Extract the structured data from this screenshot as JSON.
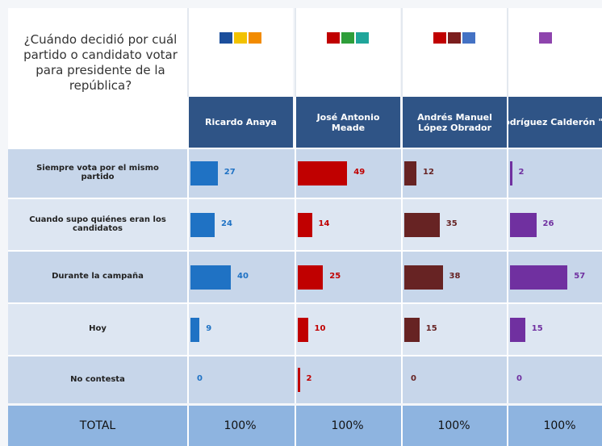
{
  "chart_data": {
    "type": "bar",
    "title": "¿Cuándo decidió por cuál partido o candidato votar para presidente de la república?",
    "categories": [
      "Siempre vota por el mismo partido",
      "Cuando supo quiénes eran los candidatos",
      "Durante la campaña",
      "Hoy",
      "No contesta"
    ],
    "series": [
      {
        "name": "Ricardo Anaya",
        "color": "#1f72c4",
        "values": [
          27,
          24,
          40,
          9,
          0
        ],
        "total_label": "100%"
      },
      {
        "name": "José Antonio Meade",
        "color": "#c00000",
        "values": [
          49,
          14,
          25,
          10,
          2
        ],
        "total_label": "100%"
      },
      {
        "name": "Andrés Manuel López Obrador",
        "color": "#672323",
        "values": [
          12,
          35,
          38,
          15,
          0
        ],
        "total_label": "100%"
      },
      {
        "name": "Jaime Rodríguez Calderón \"El Bronco\"",
        "color": "#7030a0",
        "values": [
          2,
          26,
          57,
          15,
          0
        ],
        "total_label": "100%"
      }
    ],
    "total_title": "TOTAL"
  }
}
